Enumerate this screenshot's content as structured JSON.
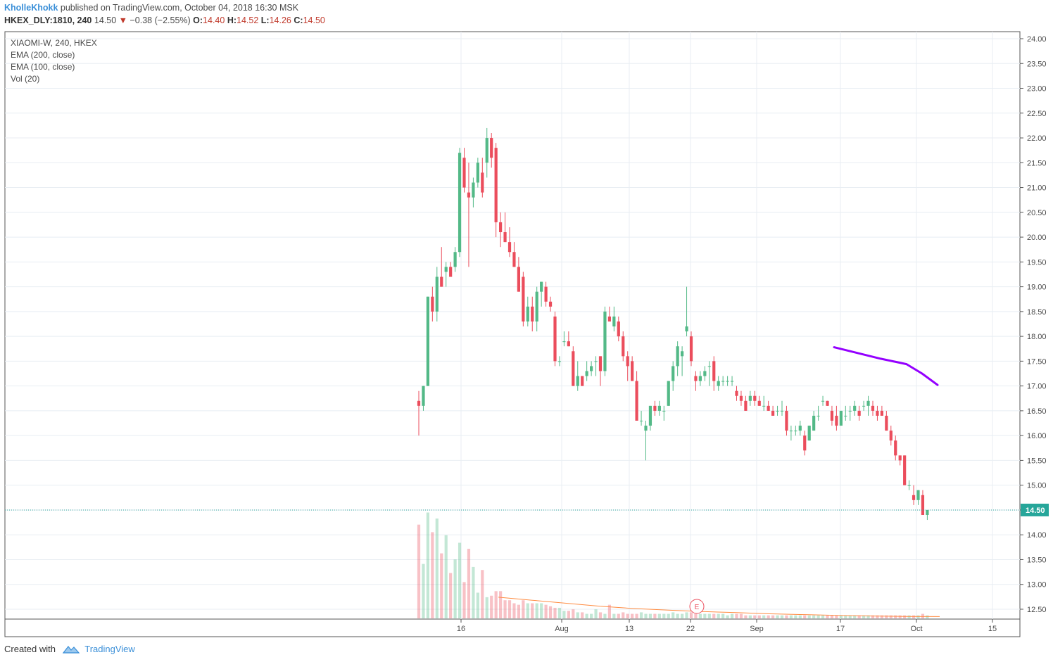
{
  "header": {
    "author": "KholleKhokk",
    "published_text": "published on TradingView.com, October 04, 2018 16:30 MSK",
    "symbol": "HKEX_DLY:1810, 240",
    "last": "14.50",
    "change": "−0.38 (−2.55%)",
    "o_label": "O:",
    "o_value": "14.40",
    "h_label": "H:",
    "h_value": "14.52",
    "l_label": "L:",
    "l_value": "14.26",
    "c_label": "C:",
    "c_value": "14.50"
  },
  "legend": [
    "XIAOMI-W, 240, HKEX",
    "EMA (200, close)",
    "EMA (100, close)",
    "Vol (20)"
  ],
  "footer": {
    "created_with": "Created with",
    "brand": "TradingView"
  },
  "colors": {
    "up": "#53b987",
    "down": "#eb4d5c",
    "ema": "#9400ff",
    "vol_ma": "#ff8c42",
    "price_line": "#26a69a",
    "grid": "#e8eef3"
  },
  "chart_data": {
    "type": "candlestick",
    "title": "XIAOMI-W, 240, HKEX",
    "y_axis": {
      "min": 12.5,
      "max": 24.0,
      "ticks": [
        "24.00",
        "23.50",
        "23.00",
        "22.50",
        "22.00",
        "21.50",
        "21.00",
        "20.50",
        "20.00",
        "19.50",
        "19.00",
        "18.50",
        "18.00",
        "17.50",
        "17.00",
        "16.50",
        "16.00",
        "15.50",
        "15.00",
        "14.50",
        "14.00",
        "13.50",
        "13.00",
        "12.50"
      ],
      "position": "right"
    },
    "x_axis": {
      "ticks": [
        "16",
        "Aug",
        "13",
        "22",
        "Sep",
        "17",
        "Oct",
        "15"
      ]
    },
    "last_price": {
      "value": 14.5,
      "label": "14.50"
    },
    "earnings_marker": "E",
    "candles": [
      [
        16.7,
        16.9,
        16.0,
        16.6
      ],
      [
        16.6,
        17.0,
        16.5,
        17.0
      ],
      [
        17.0,
        18.8,
        17.0,
        18.8
      ],
      [
        18.8,
        19.0,
        18.3,
        18.5
      ],
      [
        18.5,
        19.4,
        18.3,
        19.2
      ],
      [
        19.2,
        19.8,
        19.0,
        19.0
      ],
      [
        19.3,
        19.5,
        19.0,
        19.4
      ],
      [
        19.4,
        19.5,
        19.2,
        19.2
      ],
      [
        19.4,
        19.8,
        19.3,
        19.7
      ],
      [
        19.7,
        21.8,
        19.6,
        21.7
      ],
      [
        21.6,
        21.8,
        20.9,
        21.0
      ],
      [
        20.9,
        21.5,
        19.4,
        20.8
      ],
      [
        20.8,
        21.2,
        20.6,
        21.1
      ],
      [
        21.1,
        21.6,
        21.0,
        21.5
      ],
      [
        21.3,
        21.6,
        20.8,
        20.9
      ],
      [
        21.5,
        22.2,
        21.2,
        22.0
      ],
      [
        22.0,
        22.1,
        21.4,
        21.6
      ],
      [
        21.8,
        21.9,
        20.0,
        20.3
      ],
      [
        20.3,
        20.5,
        19.8,
        20.1
      ],
      [
        20.1,
        20.5,
        19.9,
        19.9
      ],
      [
        19.9,
        20.2,
        19.6,
        19.7
      ],
      [
        19.7,
        19.9,
        19.4,
        19.4
      ],
      [
        19.4,
        19.6,
        18.9,
        18.9
      ],
      [
        19.2,
        19.3,
        18.2,
        18.3
      ],
      [
        18.3,
        18.8,
        18.2,
        18.6
      ],
      [
        18.6,
        18.8,
        18.1,
        18.3
      ],
      [
        18.3,
        19.0,
        18.1,
        18.9
      ],
      [
        18.9,
        19.1,
        18.6,
        19.1
      ],
      [
        19.0,
        19.1,
        18.6,
        18.7
      ],
      [
        18.7,
        18.8,
        18.5,
        18.6
      ],
      [
        18.4,
        18.5,
        17.4,
        17.5
      ],
      [
        17.5,
        17.6,
        17.4,
        17.5
      ],
      [
        17.9,
        18.1,
        17.8,
        17.9
      ],
      [
        17.9,
        18.1,
        17.8,
        17.8
      ],
      [
        17.7,
        17.8,
        17.0,
        17.0
      ],
      [
        17.0,
        17.5,
        16.9,
        17.2
      ],
      [
        17.2,
        17.2,
        17.0,
        17.0
      ],
      [
        17.2,
        17.5,
        17.1,
        17.3
      ],
      [
        17.3,
        17.5,
        17.2,
        17.4
      ],
      [
        17.5,
        17.6,
        17.2,
        17.5
      ],
      [
        17.6,
        17.6,
        17.0,
        17.3
      ],
      [
        17.3,
        18.6,
        17.2,
        18.5
      ],
      [
        18.4,
        18.6,
        18.3,
        18.3
      ],
      [
        18.2,
        18.6,
        18.1,
        18.4
      ],
      [
        18.3,
        18.4,
        17.9,
        18.0
      ],
      [
        18.0,
        18.1,
        17.5,
        17.6
      ],
      [
        17.6,
        17.7,
        17.1,
        17.4
      ],
      [
        17.5,
        17.6,
        17.1,
        17.1
      ],
      [
        17.1,
        17.3,
        16.3,
        16.3
      ],
      [
        16.3,
        16.5,
        16.2,
        16.3
      ],
      [
        16.1,
        16.3,
        15.5,
        16.2
      ],
      [
        16.2,
        16.6,
        16.1,
        16.6
      ],
      [
        16.6,
        16.7,
        16.4,
        16.5
      ],
      [
        16.5,
        16.7,
        16.4,
        16.6
      ],
      [
        16.5,
        16.6,
        16.3,
        16.5
      ],
      [
        16.6,
        17.1,
        16.6,
        17.1
      ],
      [
        17.1,
        17.5,
        16.9,
        17.4
      ],
      [
        17.4,
        17.9,
        17.2,
        17.8
      ],
      [
        17.6,
        17.8,
        17.2,
        17.7
      ],
      [
        18.1,
        19.0,
        18.0,
        18.2
      ],
      [
        18.0,
        18.1,
        17.4,
        17.5
      ],
      [
        17.2,
        17.3,
        16.9,
        17.1
      ],
      [
        17.1,
        17.3,
        17.0,
        17.2
      ],
      [
        17.2,
        17.4,
        17.1,
        17.3
      ],
      [
        17.4,
        17.5,
        17.0,
        17.4
      ],
      [
        17.5,
        17.6,
        16.9,
        17.1
      ],
      [
        17.0,
        17.2,
        16.9,
        17.1
      ],
      [
        17.1,
        17.2,
        17.0,
        17.1
      ],
      [
        17.1,
        17.2,
        17.0,
        17.1
      ],
      [
        17.1,
        17.2,
        17.0,
        17.1
      ],
      [
        16.9,
        17.0,
        16.7,
        16.8
      ],
      [
        16.8,
        16.9,
        16.6,
        16.7
      ],
      [
        16.7,
        16.8,
        16.5,
        16.5
      ],
      [
        16.7,
        16.9,
        16.6,
        16.8
      ],
      [
        16.8,
        16.9,
        16.6,
        16.7
      ],
      [
        16.7,
        16.8,
        16.6,
        16.6
      ],
      [
        16.6,
        16.8,
        16.5,
        16.6
      ],
      [
        16.6,
        16.7,
        16.5,
        16.5
      ],
      [
        16.5,
        16.6,
        16.4,
        16.4
      ],
      [
        16.5,
        16.6,
        16.4,
        16.5
      ],
      [
        16.5,
        16.7,
        16.4,
        16.5
      ],
      [
        16.5,
        16.6,
        16.0,
        16.1
      ],
      [
        16.1,
        16.2,
        15.9,
        16.1
      ],
      [
        16.1,
        16.2,
        16.0,
        16.1
      ],
      [
        16.1,
        16.3,
        16.0,
        16.2
      ],
      [
        16.0,
        16.1,
        15.6,
        15.7
      ],
      [
        15.9,
        16.2,
        15.9,
        16.2
      ],
      [
        16.1,
        16.5,
        16.1,
        16.4
      ],
      [
        16.4,
        16.6,
        16.3,
        16.4
      ],
      [
        16.7,
        16.8,
        16.6,
        16.7
      ],
      [
        16.7,
        16.7,
        16.6,
        16.6
      ],
      [
        16.5,
        16.6,
        16.2,
        16.3
      ],
      [
        16.4,
        16.6,
        16.1,
        16.2
      ],
      [
        16.2,
        16.5,
        16.2,
        16.5
      ],
      [
        16.4,
        16.6,
        16.3,
        16.4
      ],
      [
        16.5,
        16.6,
        16.3,
        16.5
      ],
      [
        16.5,
        16.7,
        16.4,
        16.6
      ],
      [
        16.5,
        16.6,
        16.3,
        16.4
      ],
      [
        16.6,
        16.7,
        16.5,
        16.6
      ],
      [
        16.6,
        16.8,
        16.4,
        16.7
      ],
      [
        16.6,
        16.7,
        16.4,
        16.5
      ],
      [
        16.5,
        16.6,
        16.3,
        16.4
      ],
      [
        16.5,
        16.6,
        16.4,
        16.4
      ],
      [
        16.4,
        16.5,
        16.1,
        16.1
      ],
      [
        16.1,
        16.2,
        15.8,
        15.9
      ],
      [
        15.9,
        16.0,
        15.5,
        15.6
      ],
      [
        15.6,
        15.6,
        15.4,
        15.5
      ],
      [
        15.6,
        15.6,
        15.0,
        15.0
      ],
      [
        15.0,
        15.1,
        14.9,
        15.0
      ],
      [
        14.8,
        15.0,
        14.6,
        14.7
      ],
      [
        14.7,
        14.9,
        14.6,
        14.9
      ],
      [
        14.8,
        14.9,
        14.4,
        14.4
      ],
      [
        14.4,
        14.5,
        14.3,
        14.5
      ]
    ],
    "volume_relative": [
      0.62,
      0.36,
      0.7,
      0.57,
      0.66,
      0.43,
      0.55,
      0.3,
      0.39,
      0.5,
      0.24,
      0.46,
      0.34,
      0.17,
      0.32,
      0.14,
      0.15,
      0.18,
      0.18,
      0.12,
      0.12,
      0.1,
      0.09,
      0.12,
      0.1,
      0.1,
      0.1,
      0.1,
      0.09,
      0.08,
      0.07,
      0.07,
      0.05,
      0.05,
      0.06,
      0.04,
      0.04,
      0.03,
      0.03,
      0.06,
      0.04,
      0.03,
      0.09,
      0.03,
      0.03,
      0.04,
      0.03,
      0.03,
      0.03,
      0.04,
      0.03,
      0.03,
      0.03,
      0.03,
      0.03,
      0.03,
      0.04,
      0.03,
      0.03,
      0.04,
      0.04,
      0.03,
      0.03,
      0.03,
      0.03,
      0.03,
      0.03,
      0.03,
      0.02,
      0.03,
      0.03,
      0.03,
      0.02,
      0.02,
      0.02,
      0.02,
      0.02,
      0.02,
      0.02,
      0.02,
      0.02,
      0.02,
      0.02,
      0.02,
      0.02,
      0.02,
      0.02,
      0.02,
      0.02,
      0.02,
      0.02,
      0.02,
      0.02,
      0.02,
      0.02,
      0.02,
      0.02,
      0.02,
      0.02,
      0.02,
      0.02,
      0.02,
      0.02,
      0.02,
      0.02,
      0.02,
      0.02,
      0.02,
      0.02,
      0.02,
      0.02,
      0.03,
      0.02,
      0.02,
      0.02,
      0.02,
      0.02
    ],
    "ema_200_points": [
      [
        17.78,
        0
      ],
      [
        17.55,
        0.45
      ],
      [
        17.44,
        0.7
      ],
      [
        17.25,
        0.85
      ],
      [
        17.02,
        1.0
      ]
    ],
    "vol_ma_relative": [
      0.14,
      0.12,
      0.1,
      0.08,
      0.065,
      0.055,
      0.045,
      0.038,
      0.03,
      0.025,
      0.02,
      0.016,
      0.013,
      0.012
    ]
  }
}
